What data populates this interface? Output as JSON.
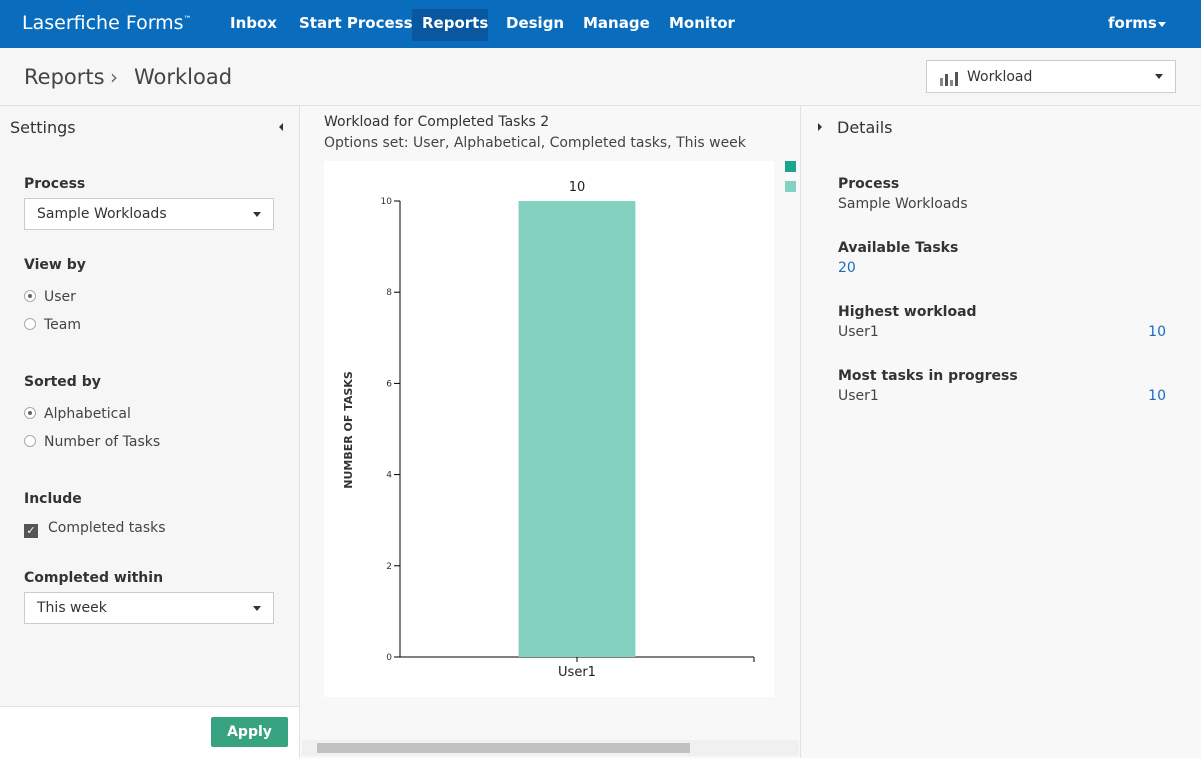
{
  "nav": {
    "brand": "Laserfiche Forms",
    "trademark": "™",
    "items": [
      "Inbox",
      "Start Process",
      "Reports",
      "Design",
      "Manage",
      "Monitor"
    ],
    "user": "forms"
  },
  "breadcrumb": [
    "Reports",
    "Workload"
  ],
  "report_selector": "Workload",
  "settings": {
    "title": "Settings",
    "process_label": "Process",
    "process_value": "Sample Workloads",
    "view_by_label": "View by",
    "view_by_options": [
      "User",
      "Team"
    ],
    "sorted_by_label": "Sorted by",
    "sorted_by_options": [
      "Alphabetical",
      "Number of Tasks"
    ],
    "include_label": "Include",
    "include_options": [
      "Completed tasks"
    ],
    "completed_within_label": "Completed within",
    "completed_within_value": "This week",
    "apply": "Apply"
  },
  "details": {
    "title": "Details",
    "items": [
      {
        "label": "Process",
        "value": "Sample Workloads"
      },
      {
        "label": "Available Tasks",
        "value": 20
      },
      {
        "label": "Highest workload",
        "name": "User1",
        "value": 10
      },
      {
        "label": "Most tasks in progress",
        "name": "User1",
        "value": 10
      }
    ]
  },
  "chart_data": {
    "type": "bar",
    "title": "Workload for Completed Tasks 2",
    "subtitle": "Options set: User, Alphabetical, Completed tasks, This week",
    "y_label": "NUMBER OF TASKS",
    "categories": [
      "User1"
    ],
    "values": [
      10
    ],
    "color": "#84d0c1",
    "ylim": [
      0,
      10
    ],
    "yticks": [
      0,
      2,
      4,
      6,
      8,
      10
    ],
    "grid": false
  }
}
